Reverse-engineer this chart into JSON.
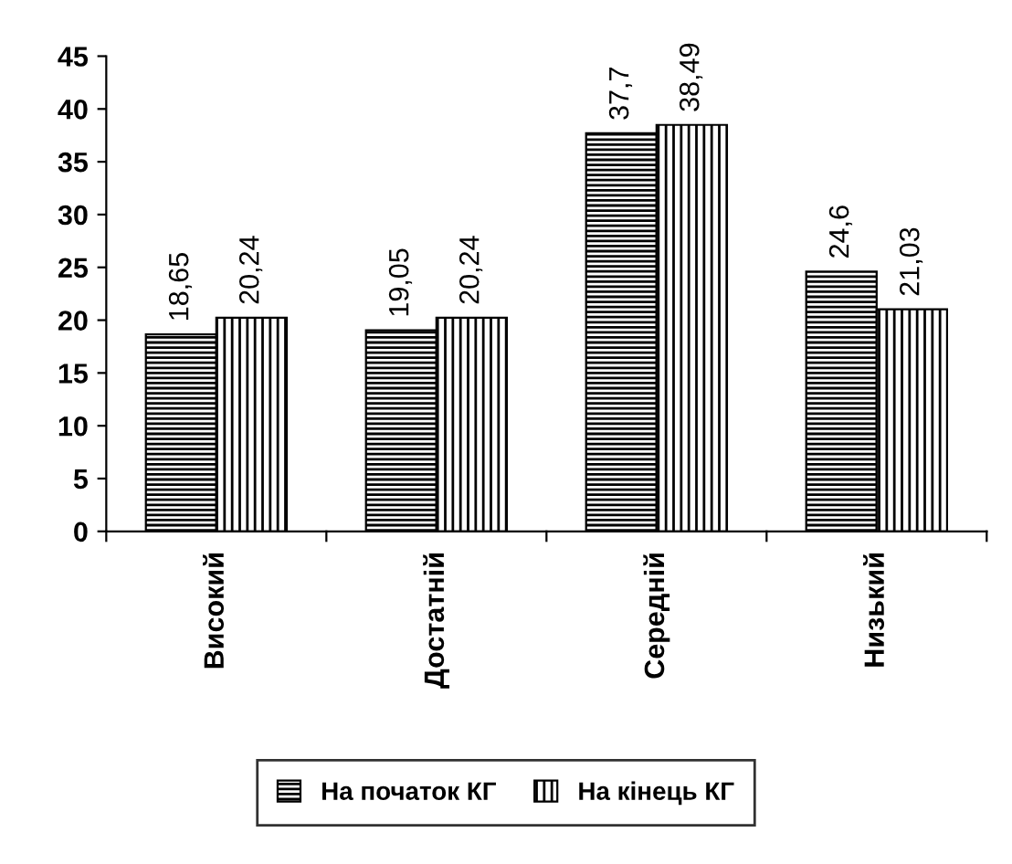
{
  "chart_data": {
    "type": "bar",
    "categories": [
      "Високий",
      "Достатній",
      "Середній",
      "Низький"
    ],
    "series": [
      {
        "name": "На початок КГ",
        "color": "#000000",
        "values": [
          18.65,
          19.05,
          37.7,
          24.6
        ],
        "value_labels": [
          "18,65",
          "19,05",
          "37,7",
          "24,6"
        ]
      },
      {
        "name": "На кінець КГ",
        "color": "#000000",
        "values": [
          20.24,
          20.24,
          38.49,
          21.03
        ],
        "value_labels": [
          "20,24",
          "20,24",
          "38,49",
          "21,03"
        ]
      }
    ],
    "ylim": [
      0,
      45
    ],
    "yticks": [
      0,
      5,
      10,
      15,
      20,
      25,
      30,
      35,
      40,
      45
    ],
    "grid": false,
    "legend": "bottom"
  }
}
